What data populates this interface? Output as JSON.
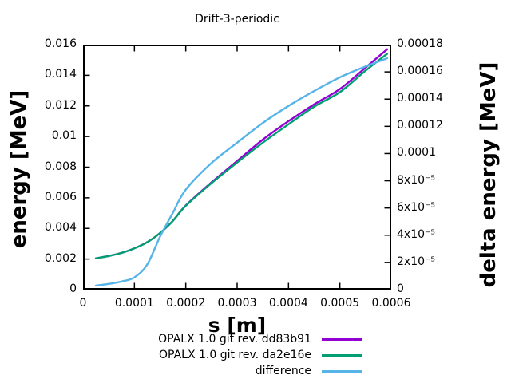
{
  "chart_data": {
    "type": "line",
    "title": "Drift-3-periodic",
    "xlabel": "s [m]",
    "ylabel": "energy [MeV]",
    "y2label": "delta energy [MeV]",
    "xlim": [
      0,
      0.0006
    ],
    "ylim": [
      0,
      0.016
    ],
    "y2lim": [
      0,
      0.00018
    ],
    "grid": false,
    "legend_position": "below-plot-right",
    "border_color": "#000000",
    "background_color": "#ffffff",
    "x_ticks": [
      {
        "v": 0,
        "label": "0"
      },
      {
        "v": 0.0001,
        "label": "0.0001"
      },
      {
        "v": 0.0002,
        "label": "0.0002"
      },
      {
        "v": 0.0003,
        "label": "0.0003"
      },
      {
        "v": 0.0004,
        "label": "0.0004"
      },
      {
        "v": 0.0005,
        "label": "0.0005"
      },
      {
        "v": 0.0006,
        "label": "0.0006"
      }
    ],
    "y_ticks": [
      {
        "v": 0,
        "label": "0"
      },
      {
        "v": 0.002,
        "label": "0.002"
      },
      {
        "v": 0.004,
        "label": "0.004"
      },
      {
        "v": 0.006,
        "label": "0.006"
      },
      {
        "v": 0.008,
        "label": "0.008"
      },
      {
        "v": 0.01,
        "label": "0.01"
      },
      {
        "v": 0.012,
        "label": "0.012"
      },
      {
        "v": 0.014,
        "label": "0.014"
      },
      {
        "v": 0.016,
        "label": "0.016"
      }
    ],
    "y2_ticks": [
      {
        "v": 0,
        "label": "0"
      },
      {
        "v": 2e-05,
        "label": "2x10⁻⁵"
      },
      {
        "v": 4e-05,
        "label": "4x10⁻⁵"
      },
      {
        "v": 6e-05,
        "label": "6x10⁻⁵"
      },
      {
        "v": 8e-05,
        "label": "8x10⁻⁵"
      },
      {
        "v": 0.0001,
        "label": "0.0001"
      },
      {
        "v": 0.00012,
        "label": "0.00012"
      },
      {
        "v": 0.00014,
        "label": "0.00014"
      },
      {
        "v": 0.00016,
        "label": "0.00016"
      },
      {
        "v": 0.00018,
        "label": "0.00018"
      }
    ],
    "x": [
      2.5e-05,
      5e-05,
      7.5e-05,
      0.0001,
      0.000125,
      0.00015,
      0.000175,
      0.0002,
      0.00025,
      0.0003,
      0.00035,
      0.0004,
      0.00045,
      0.0005,
      0.00055,
      0.000592
    ],
    "series": [
      {
        "name": "OPALX 1.0 git rev. dd83b91",
        "color": "#9400d3",
        "axis": "y1",
        "values": [
          0.00205,
          0.0022,
          0.0024,
          0.0027,
          0.0031,
          0.0037,
          0.0045,
          0.0055,
          0.007,
          0.0084,
          0.0098,
          0.011,
          0.0121,
          0.0131,
          0.0145,
          0.0157
        ]
      },
      {
        "name": "OPALX 1.0 git rev. da2e16e",
        "color": "#009e73",
        "axis": "y1",
        "values": [
          0.00205,
          0.0022,
          0.0024,
          0.0027,
          0.0031,
          0.0037,
          0.0045,
          0.00548,
          0.00695,
          0.0083,
          0.0096,
          0.0108,
          0.01195,
          0.0129,
          0.0143,
          0.0154
        ]
      },
      {
        "name": "difference",
        "color": "#56b4e9",
        "axis": "y2",
        "values": [
          3e-06,
          4.2e-06,
          6e-06,
          9e-06,
          1.85e-05,
          3.9e-05,
          5.65e-05,
          7.35e-05,
          9.3e-05,
          0.000108,
          0.0001225,
          0.000135,
          0.000146,
          0.000156,
          0.000164,
          0.00017
        ]
      }
    ]
  },
  "layout_colors": {
    "text": "#000000",
    "axis": "#000000"
  }
}
